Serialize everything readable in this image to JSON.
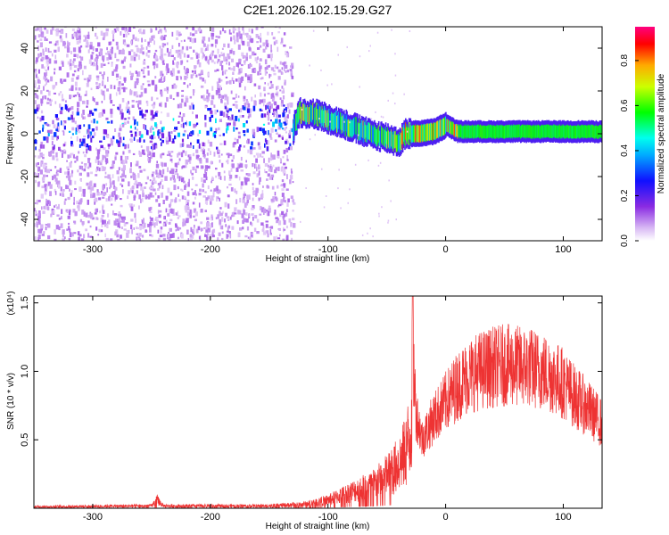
{
  "title": "C2E1.2026.102.15.29.G27",
  "chart_data": [
    {
      "type": "heatmap",
      "xlabel": "Height of straight line (km)",
      "ylabel": "Frequency (Hz)",
      "xlim": [
        -350,
        133
      ],
      "ylim": [
        -50,
        50
      ],
      "x_ticks": [
        -300,
        -200,
        -100,
        0,
        100
      ],
      "y_ticks": [
        -40,
        -20,
        0,
        20,
        40
      ],
      "colorbar": {
        "label": "Normalized spectral amplitude",
        "range": [
          0.0,
          0.95
        ],
        "ticks": [
          "0.0",
          "0.2",
          "0.4",
          "0.6",
          "0.8"
        ]
      },
      "ridge": {
        "x": [
          -350,
          -300,
          -250,
          -200,
          -150,
          -130,
          -125,
          -110,
          -95,
          -80,
          -65,
          -50,
          -40,
          -35,
          -25,
          -10,
          0,
          10,
          30,
          60,
          100,
          133
        ],
        "frequency": [
          2,
          2,
          3,
          2,
          3,
          2,
          10,
          9,
          6,
          3,
          0,
          -2,
          -4,
          0,
          0,
          1,
          4,
          1,
          1,
          1,
          1,
          1
        ]
      },
      "grid": false
    },
    {
      "type": "line",
      "xlabel": "Height of straight line (km)",
      "ylabel": "SNR (10 * v/v)",
      "y_scale_label": "(x10⁴)",
      "xlim": [
        -350,
        133
      ],
      "ylim": [
        0,
        1.55
      ],
      "x_ticks": [
        -300,
        -200,
        -100,
        0,
        100
      ],
      "y_ticks": [
        "0.5",
        "1.0",
        "1.5"
      ],
      "series_color": "#ee3333",
      "envelope": {
        "x": [
          -350,
          -250,
          -245,
          -240,
          -200,
          -150,
          -120,
          -100,
          -80,
          -60,
          -45,
          -35,
          -30,
          -28,
          -25,
          -20,
          -10,
          0,
          10,
          20,
          30,
          40,
          50,
          60,
          70,
          80,
          90,
          100,
          110,
          120,
          133
        ],
        "y": [
          0.02,
          0.03,
          0.1,
          0.03,
          0.03,
          0.03,
          0.05,
          0.1,
          0.2,
          0.3,
          0.45,
          0.65,
          0.9,
          1.55,
          0.9,
          0.65,
          0.85,
          1.0,
          1.15,
          1.25,
          1.3,
          1.33,
          1.35,
          1.34,
          1.33,
          1.3,
          1.25,
          1.18,
          1.05,
          0.95,
          0.8
        ]
      },
      "grid": false
    }
  ]
}
